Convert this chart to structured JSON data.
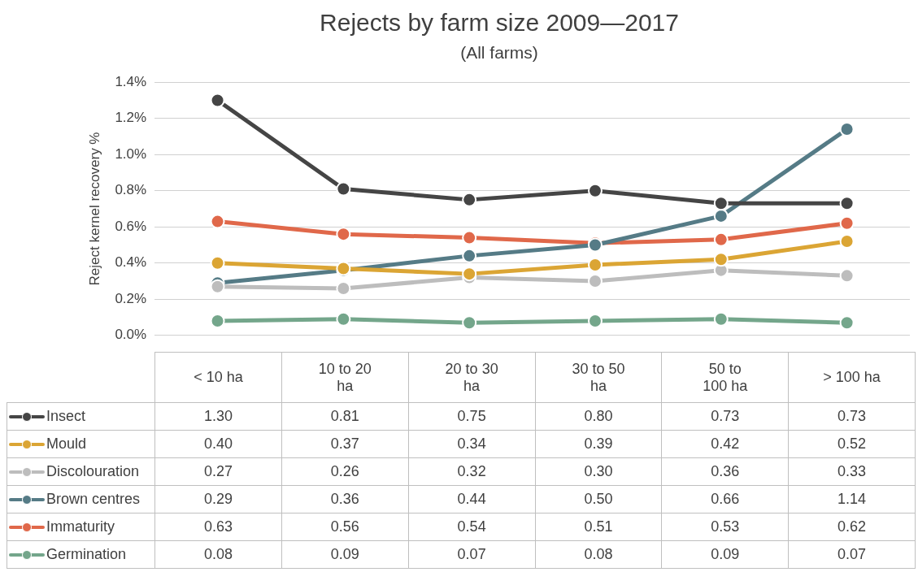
{
  "chart_data": {
    "type": "line",
    "title": "Rejects by farm size 2009—2017",
    "subtitle": "(All farms)",
    "ylabel": "Reject kernel recovery %",
    "categories": [
      "< 10 ha",
      "10 to 20 ha",
      "20 to 30 ha",
      "30 to 50 ha",
      "50 to 100 ha",
      "> 100 ha"
    ],
    "series": [
      {
        "name": "Insect",
        "color": "#454545",
        "values": [
          1.3,
          0.81,
          0.75,
          0.8,
          0.73,
          0.73
        ],
        "value_labels": [
          "1.30",
          "0.81",
          "0.75",
          "0.80",
          "0.73",
          "0.73"
        ]
      },
      {
        "name": "Mould",
        "color": "#dba534",
        "values": [
          0.4,
          0.37,
          0.34,
          0.39,
          0.42,
          0.52
        ],
        "value_labels": [
          "0.40",
          "0.37",
          "0.34",
          "0.39",
          "0.42",
          "0.52"
        ]
      },
      {
        "name": "Discolouration",
        "color": "#bdbdbd",
        "values": [
          0.27,
          0.26,
          0.32,
          0.3,
          0.36,
          0.33
        ],
        "value_labels": [
          "0.27",
          "0.26",
          "0.32",
          "0.30",
          "0.36",
          "0.33"
        ]
      },
      {
        "name": "Brown centres",
        "color": "#557b86",
        "values": [
          0.29,
          0.36,
          0.44,
          0.5,
          0.66,
          1.14
        ],
        "value_labels": [
          "0.29",
          "0.36",
          "0.44",
          "0.50",
          "0.66",
          "1.14"
        ]
      },
      {
        "name": "Immaturity",
        "color": "#e0684a",
        "values": [
          0.63,
          0.56,
          0.54,
          0.51,
          0.53,
          0.62
        ],
        "value_labels": [
          "0.63",
          "0.56",
          "0.54",
          "0.51",
          "0.53",
          "0.62"
        ]
      },
      {
        "name": "Germination",
        "color": "#74a68b",
        "values": [
          0.08,
          0.09,
          0.07,
          0.08,
          0.09,
          0.07
        ],
        "value_labels": [
          "0.08",
          "0.09",
          "0.07",
          "0.08",
          "0.09",
          "0.07"
        ]
      }
    ],
    "ylim": [
      0,
      1.4
    ],
    "yticks": [
      {
        "value": 0,
        "label": "0.0%"
      },
      {
        "value": 0.2,
        "label": "0.2%"
      },
      {
        "value": 0.4,
        "label": "0.4%"
      },
      {
        "value": 0.6,
        "label": "0.6%"
      },
      {
        "value": 0.8,
        "label": "0.8%"
      },
      {
        "value": 1.0,
        "label": "1.0%"
      },
      {
        "value": 1.2,
        "label": "1.2%"
      },
      {
        "value": 1.4,
        "label": "1.4%"
      }
    ],
    "grid": "y",
    "legend": "bottom",
    "marker": "circle",
    "line_style": "solid"
  }
}
